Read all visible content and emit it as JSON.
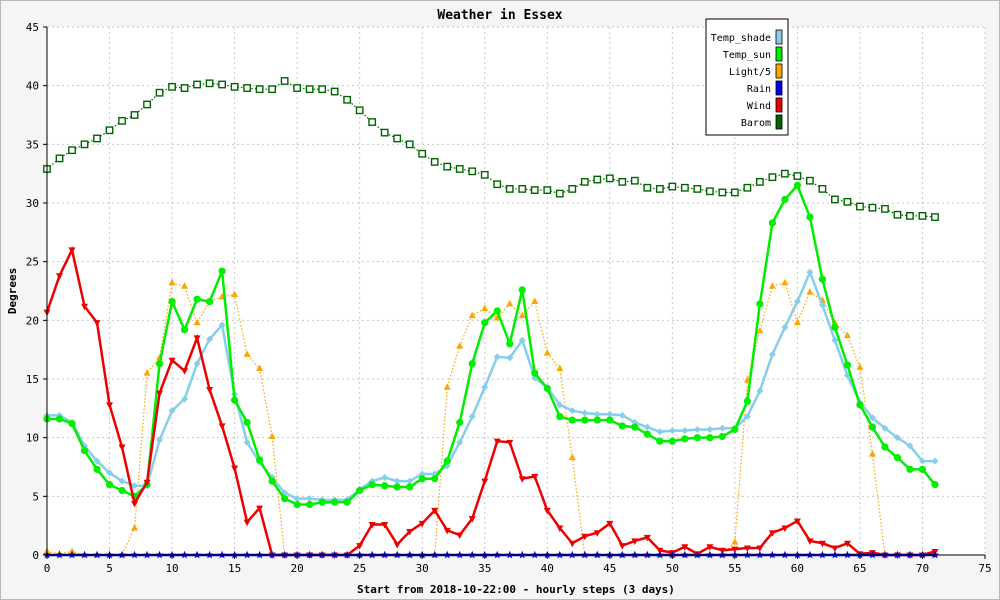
{
  "chart_data": {
    "type": "line",
    "title": "Weather in Essex",
    "xlabel": "Start from 2018-10-22:00 - hourly steps (3 days)",
    "ylabel": "Degrees",
    "xlim": [
      0,
      75
    ],
    "ylim": [
      0,
      45
    ],
    "x_ticks": [
      0,
      5,
      10,
      15,
      20,
      25,
      30,
      35,
      40,
      45,
      50,
      55,
      60,
      65,
      70,
      75
    ],
    "y_ticks": [
      0,
      5,
      10,
      15,
      20,
      25,
      30,
      35,
      40,
      45
    ],
    "grid": true,
    "legend_position": "top-right",
    "x": [
      0,
      1,
      2,
      3,
      4,
      5,
      6,
      7,
      8,
      9,
      10,
      11,
      12,
      13,
      14,
      15,
      16,
      17,
      18,
      19,
      20,
      21,
      22,
      23,
      24,
      25,
      26,
      27,
      28,
      29,
      30,
      31,
      32,
      33,
      34,
      35,
      36,
      37,
      38,
      39,
      40,
      41,
      42,
      43,
      44,
      45,
      46,
      47,
      48,
      49,
      50,
      51,
      52,
      53,
      54,
      55,
      56,
      57,
      58,
      59,
      60,
      61,
      62,
      63,
      64,
      65,
      66,
      67,
      68,
      69,
      70,
      71
    ],
    "series": [
      {
        "name": "Temp_shade",
        "color": "#87ceeb",
        "marker": "diamond",
        "style": "solid",
        "values": [
          11.9,
          11.9,
          11.3,
          9.3,
          8.0,
          7.0,
          6.3,
          5.9,
          5.9,
          9.8,
          12.3,
          13.3,
          16.3,
          18.4,
          19.6,
          13.7,
          9.6,
          7.9,
          6.6,
          5.3,
          4.8,
          4.8,
          4.7,
          4.7,
          4.7,
          5.6,
          6.3,
          6.6,
          6.3,
          6.3,
          6.9,
          6.9,
          7.6,
          9.6,
          11.8,
          14.3,
          16.9,
          16.8,
          18.3,
          15.1,
          14.3,
          12.8,
          12.3,
          12.1,
          12.0,
          12.0,
          11.9,
          11.3,
          10.9,
          10.5,
          10.6,
          10.6,
          10.7,
          10.7,
          10.8,
          10.8,
          11.8,
          14.0,
          17.1,
          19.4,
          21.6,
          24.1,
          21.3,
          18.3,
          15.3,
          13.0,
          11.7,
          10.8,
          10.0,
          9.3,
          8.0,
          8.0
        ]
      },
      {
        "name": "Temp_sun",
        "color": "#00ee00",
        "marker": "circle",
        "style": "solid",
        "values": [
          11.6,
          11.6,
          11.2,
          8.9,
          7.3,
          6.0,
          5.5,
          5.0,
          6.0,
          16.3,
          21.6,
          19.2,
          21.8,
          21.6,
          24.2,
          13.2,
          11.3,
          8.1,
          6.3,
          4.8,
          4.3,
          4.3,
          4.5,
          4.5,
          4.5,
          5.5,
          6.0,
          5.9,
          5.8,
          5.8,
          6.5,
          6.5,
          8.0,
          11.3,
          16.3,
          19.8,
          20.8,
          18.0,
          22.6,
          15.5,
          14.2,
          11.8,
          11.5,
          11.5,
          11.5,
          11.5,
          11.0,
          10.9,
          10.3,
          9.7,
          9.7,
          9.9,
          10.0,
          10.0,
          10.1,
          10.7,
          13.1,
          21.4,
          28.3,
          30.3,
          31.5,
          28.8,
          23.5,
          19.4,
          16.2,
          12.8,
          10.9,
          9.2,
          8.3,
          7.3,
          7.3,
          6.0
        ]
      },
      {
        "name": "Light/5",
        "color": "#ffa500",
        "marker": "triangle",
        "style": "dotted",
        "values": [
          0.3,
          0.1,
          0.3,
          0.0,
          0.0,
          0.0,
          0.0,
          2.3,
          15.5,
          16.8,
          23.2,
          22.9,
          19.8,
          21.6,
          22.0,
          22.2,
          17.1,
          15.9,
          10.1,
          0.0,
          0.0,
          0.0,
          0.0,
          0.0,
          0.0,
          0.0,
          0.0,
          0.0,
          0.0,
          0.0,
          0.0,
          0.0,
          14.3,
          17.8,
          20.4,
          21.0,
          20.2,
          21.4,
          20.4,
          21.6,
          17.2,
          15.9,
          8.3,
          0.0,
          0.0,
          0.0,
          0.0,
          0.0,
          0.0,
          0.0,
          0.0,
          0.0,
          0.0,
          0.0,
          0.0,
          1.1,
          14.9,
          19.1,
          22.9,
          23.2,
          19.8,
          22.4,
          21.7,
          19.8,
          18.7,
          16.0,
          8.6,
          0.0,
          0.0,
          0.0,
          0.0,
          0.0
        ]
      },
      {
        "name": "Rain",
        "color": "#0000ee",
        "marker": "star",
        "style": "solid",
        "values": [
          0,
          0,
          0,
          0,
          0,
          0,
          0,
          0,
          0,
          0,
          0,
          0,
          0,
          0,
          0,
          0,
          0,
          0,
          0,
          0,
          0,
          0,
          0,
          0,
          0,
          0,
          0,
          0,
          0,
          0,
          0,
          0,
          0,
          0,
          0,
          0,
          0,
          0,
          0,
          0,
          0,
          0,
          0,
          0,
          0,
          0,
          0,
          0,
          0,
          0,
          0,
          0,
          0,
          0,
          0,
          0,
          0,
          0,
          0,
          0,
          0,
          0,
          0,
          0,
          0,
          0,
          0,
          0,
          0,
          0,
          0,
          0
        ]
      },
      {
        "name": "Wind",
        "color": "#ee0000",
        "marker": "triangle-down",
        "style": "solid",
        "values": [
          20.7,
          23.8,
          26.0,
          21.2,
          19.8,
          12.8,
          9.2,
          4.4,
          6.2,
          13.8,
          16.6,
          15.7,
          18.5,
          14.1,
          11.0,
          7.4,
          2.8,
          4.0,
          0.0,
          0.0,
          0.0,
          0.0,
          0.0,
          0.0,
          0.0,
          0.8,
          2.6,
          2.6,
          0.9,
          2.0,
          2.7,
          3.8,
          2.1,
          1.7,
          3.1,
          6.3,
          9.7,
          9.6,
          6.5,
          6.7,
          3.8,
          2.3,
          1.0,
          1.6,
          1.9,
          2.7,
          0.8,
          1.2,
          1.5,
          0.4,
          0.2,
          0.7,
          0.1,
          0.7,
          0.4,
          0.5,
          0.6,
          0.6,
          1.9,
          2.3,
          2.9,
          1.2,
          1.0,
          0.6,
          1.0,
          0.1,
          0.2,
          0.0,
          0.0,
          0.0,
          0.0,
          0.3
        ]
      },
      {
        "name": "Barom",
        "color": "#006400",
        "marker": "square",
        "style": "dotted",
        "values": [
          32.9,
          33.8,
          34.5,
          35.0,
          35.5,
          36.2,
          37.0,
          37.5,
          38.4,
          39.4,
          39.9,
          39.8,
          40.1,
          40.2,
          40.1,
          39.9,
          39.8,
          39.7,
          39.7,
          40.4,
          39.8,
          39.7,
          39.7,
          39.5,
          38.8,
          37.9,
          36.9,
          36.0,
          35.5,
          35.0,
          34.2,
          33.5,
          33.1,
          32.9,
          32.7,
          32.4,
          31.6,
          31.2,
          31.2,
          31.1,
          31.1,
          30.8,
          31.2,
          31.8,
          32.0,
          32.1,
          31.8,
          31.9,
          31.3,
          31.2,
          31.4,
          31.3,
          31.2,
          31.0,
          30.9,
          30.9,
          31.3,
          31.8,
          32.2,
          32.5,
          32.3,
          31.9,
          31.2,
          30.3,
          30.1,
          29.7,
          29.6,
          29.5,
          29.0,
          28.9,
          28.9,
          28.8
        ]
      }
    ]
  }
}
